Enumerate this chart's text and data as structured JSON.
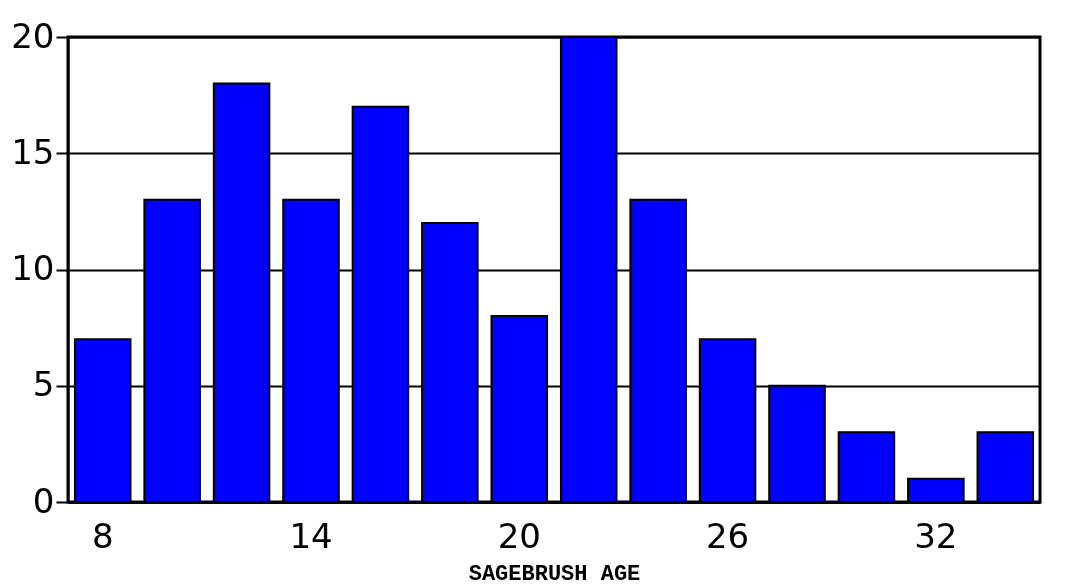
{
  "chart_data": {
    "type": "bar",
    "xlabel": "SAGEBRUSH AGE",
    "categories": [
      "8",
      null,
      null,
      "14",
      null,
      null,
      "20",
      null,
      null,
      "26",
      null,
      null,
      "32",
      null
    ],
    "values": [
      7,
      13,
      18,
      13,
      17,
      12,
      8,
      20,
      13,
      7,
      5,
      3,
      1,
      3
    ],
    "color": "#0000ff",
    "ylim": [
      0,
      20
    ],
    "yticks": [
      0,
      5,
      10,
      15,
      20
    ],
    "grid": "y"
  }
}
